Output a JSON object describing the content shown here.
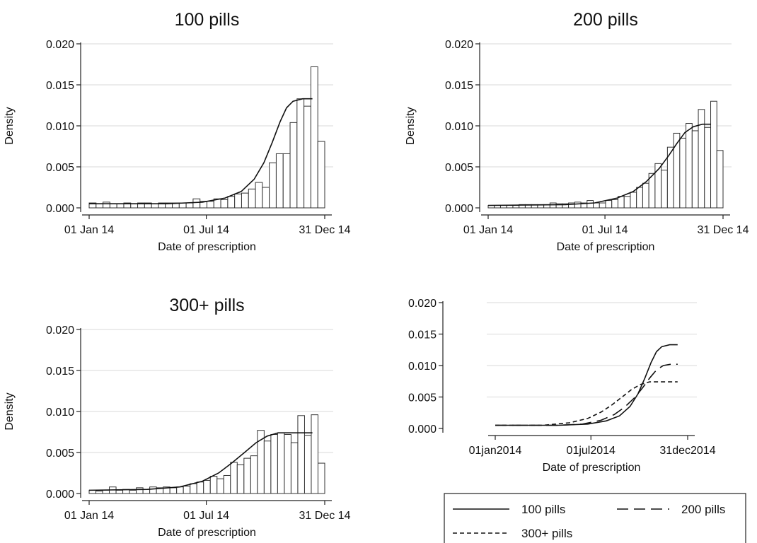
{
  "chart_data": [
    {
      "type": "bar",
      "title": "100 pills",
      "xlabel": "Date of prescription",
      "ylabel": "Density",
      "xlim": [
        "2014-01-01",
        "2014-12-31"
      ],
      "ylim": [
        0,
        0.02
      ],
      "yticks": [
        "0.000",
        "0.005",
        "0.010",
        "0.015",
        "0.020"
      ],
      "xticks": [
        {
          "date": "2014-01-01",
          "label": "01 Jan 14"
        },
        {
          "date": "2014-07-01",
          "label": "01 Jul 14"
        },
        {
          "date": "2014-12-31",
          "label": "31 Dec 14"
        }
      ],
      "grid": true,
      "values": [
        0.0006,
        0.0005,
        0.0007,
        0.0005,
        0.0005,
        0.0006,
        0.0005,
        0.0006,
        0.0006,
        0.0005,
        0.0006,
        0.0006,
        0.0006,
        0.0006,
        0.0006,
        0.0011,
        0.0008,
        0.0008,
        0.0011,
        0.001,
        0.0014,
        0.0017,
        0.0018,
        0.0023,
        0.0031,
        0.0025,
        0.0055,
        0.0066,
        0.0066,
        0.0104,
        0.0133,
        0.0124,
        0.0172,
        0.0081
      ],
      "curve": [
        [
          0,
          0.0005
        ],
        [
          120,
          0.0005
        ],
        [
          175,
          0.0007
        ],
        [
          210,
          0.0012
        ],
        [
          235,
          0.002
        ],
        [
          255,
          0.0035
        ],
        [
          270,
          0.0055
        ],
        [
          283,
          0.008
        ],
        [
          295,
          0.0105
        ],
        [
          305,
          0.0122
        ],
        [
          315,
          0.013
        ],
        [
          330,
          0.0133
        ],
        [
          345,
          0.0133
        ]
      ]
    },
    {
      "type": "bar",
      "title": "200 pills",
      "xlabel": "Date of prescription",
      "ylabel": "Density",
      "xlim": [
        "2014-01-01",
        "2014-12-31"
      ],
      "ylim": [
        0,
        0.02
      ],
      "yticks": [
        "0.000",
        "0.005",
        "0.010",
        "0.015",
        "0.020"
      ],
      "xticks": [
        {
          "date": "2014-01-01",
          "label": "01 Jan 14"
        },
        {
          "date": "2014-07-01",
          "label": "01 Jul 14"
        },
        {
          "date": "2014-12-31",
          "label": "31 Dec 14"
        }
      ],
      "grid": true,
      "values": [
        0.0003,
        0.0003,
        0.0003,
        0.0003,
        0.0003,
        0.0004,
        0.0004,
        0.0004,
        0.0004,
        0.0004,
        0.0006,
        0.0005,
        0.0005,
        0.0006,
        0.0007,
        0.0006,
        0.0009,
        0.0006,
        0.0006,
        0.0009,
        0.001,
        0.0014,
        0.0014,
        0.0019,
        0.0025,
        0.003,
        0.0042,
        0.0054,
        0.0046,
        0.0074,
        0.0091,
        0.0085,
        0.0103,
        0.0094,
        0.012,
        0.0098,
        0.013,
        0.007
      ],
      "curve": [
        [
          0,
          0.0003
        ],
        [
          120,
          0.0004
        ],
        [
          165,
          0.0006
        ],
        [
          200,
          0.0012
        ],
        [
          225,
          0.002
        ],
        [
          245,
          0.0032
        ],
        [
          265,
          0.0048
        ],
        [
          280,
          0.0064
        ],
        [
          292,
          0.0078
        ],
        [
          305,
          0.0092
        ],
        [
          318,
          0.0099
        ],
        [
          332,
          0.0102
        ],
        [
          345,
          0.0102
        ]
      ]
    },
    {
      "type": "bar",
      "title": "300+ pills",
      "xlabel": "Date of prescription",
      "ylabel": "Density",
      "xlim": [
        "2014-01-01",
        "2014-12-31"
      ],
      "ylim": [
        0,
        0.02
      ],
      "yticks": [
        "0.000",
        "0.005",
        "0.010",
        "0.015",
        "0.020"
      ],
      "xticks": [
        {
          "date": "2014-01-01",
          "label": "01 Jan 14"
        },
        {
          "date": "2014-07-01",
          "label": "01 Jul 14"
        },
        {
          "date": "2014-12-31",
          "label": "31 Dec 14"
        }
      ],
      "grid": true,
      "values": [
        0.0004,
        0.0003,
        0.0004,
        0.0008,
        0.0004,
        0.0005,
        0.0004,
        0.0007,
        0.0005,
        0.0008,
        0.0007,
        0.0008,
        0.0007,
        0.0008,
        0.0009,
        0.0012,
        0.0014,
        0.0016,
        0.0021,
        0.0018,
        0.0022,
        0.0038,
        0.0035,
        0.0043,
        0.0046,
        0.0077,
        0.0064,
        0.0072,
        0.0074,
        0.0072,
        0.0062,
        0.0095,
        0.0071,
        0.0096,
        0.0037
      ],
      "curve": [
        [
          0,
          0.0004
        ],
        [
          90,
          0.0005
        ],
        [
          140,
          0.0008
        ],
        [
          175,
          0.0015
        ],
        [
          200,
          0.0025
        ],
        [
          220,
          0.0037
        ],
        [
          240,
          0.005
        ],
        [
          258,
          0.0062
        ],
        [
          275,
          0.007
        ],
        [
          292,
          0.0074
        ],
        [
          310,
          0.0074
        ],
        [
          345,
          0.0074
        ]
      ]
    },
    {
      "type": "line",
      "title": "",
      "xlabel": "Date of prescription",
      "ylabel": "",
      "xlim": [
        "2014-01-01",
        "2014-12-31"
      ],
      "ylim": [
        0,
        0.02
      ],
      "yticks": [
        "0.000",
        "0.005",
        "0.010",
        "0.015",
        "0.020"
      ],
      "xticks": [
        {
          "date": "2014-01-01",
          "label": "01jan2014"
        },
        {
          "date": "2014-07-01",
          "label": "01jul2014"
        },
        {
          "date": "2014-12-31",
          "label": "31dec2014"
        }
      ],
      "grid": true,
      "legend_position": "bottom",
      "series": [
        {
          "name": "100 pills",
          "style": "solid",
          "points": [
            [
              0,
              0.0005
            ],
            [
              120,
              0.0005
            ],
            [
              175,
              0.0007
            ],
            [
              210,
              0.0012
            ],
            [
              235,
              0.002
            ],
            [
              255,
              0.0035
            ],
            [
              270,
              0.0055
            ],
            [
              283,
              0.008
            ],
            [
              295,
              0.0105
            ],
            [
              305,
              0.0122
            ],
            [
              315,
              0.013
            ],
            [
              330,
              0.0133
            ],
            [
              345,
              0.0133
            ]
          ]
        },
        {
          "name": "200 pills",
          "style": "long-dash",
          "points": [
            [
              0,
              0.0005
            ],
            [
              120,
              0.0005
            ],
            [
              165,
              0.0007
            ],
            [
              200,
              0.0013
            ],
            [
              225,
              0.0022
            ],
            [
              245,
              0.0034
            ],
            [
              265,
              0.005
            ],
            [
              280,
              0.0066
            ],
            [
              292,
              0.008
            ],
            [
              305,
              0.0093
            ],
            [
              318,
              0.01
            ],
            [
              332,
              0.0102
            ],
            [
              345,
              0.0102
            ]
          ]
        },
        {
          "name": "300+ pills",
          "style": "short-dash",
          "points": [
            [
              0,
              0.0005
            ],
            [
              90,
              0.0005
            ],
            [
              140,
              0.0009
            ],
            [
              175,
              0.0016
            ],
            [
              200,
              0.0026
            ],
            [
              220,
              0.0037
            ],
            [
              240,
              0.005
            ],
            [
              258,
              0.0062
            ],
            [
              275,
              0.007
            ],
            [
              292,
              0.0074
            ],
            [
              310,
              0.0074
            ],
            [
              345,
              0.0074
            ]
          ]
        }
      ]
    }
  ]
}
